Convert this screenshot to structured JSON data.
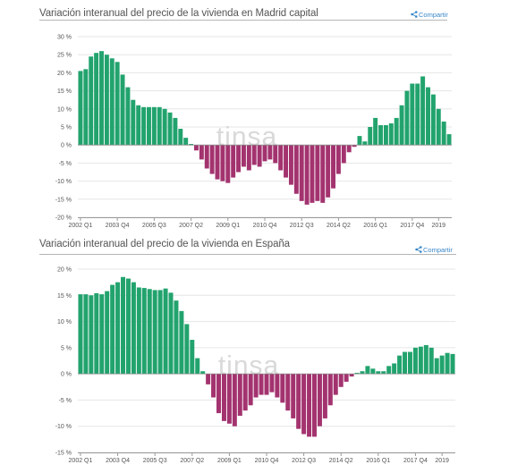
{
  "share_label": "Compartir",
  "watermark": "tinsa",
  "colors": {
    "positive": "#22a36e",
    "negative": "#a3336f",
    "grid": "#e6e6e6",
    "axis": "#9a9a9a"
  },
  "icons": {
    "share": "share-icon"
  },
  "chart_data": [
    {
      "type": "bar",
      "title": "Variación interanual del precio de la vivienda en Madrid capital",
      "xlabel": "",
      "ylabel": "",
      "ylim": [
        -20,
        30
      ],
      "y_ticks": [
        {
          "value": 30,
          "label": "30 %"
        },
        {
          "value": 25,
          "label": "25 %"
        },
        {
          "value": 20,
          "label": "20 %"
        },
        {
          "value": 15,
          "label": "15 %"
        },
        {
          "value": 10,
          "label": "10 %"
        },
        {
          "value": 5,
          "label": "5 %"
        },
        {
          "value": 0,
          "label": "0 %"
        },
        {
          "value": -5,
          "label": "-5 %"
        },
        {
          "value": -10,
          "label": "-10 %"
        },
        {
          "value": -15,
          "label": "-15 %"
        },
        {
          "value": -20,
          "label": "-20 %"
        }
      ],
      "x_ticks": [
        {
          "index": 0,
          "label": "2002 Q1"
        },
        {
          "index": 7,
          "label": "2003 Q4"
        },
        {
          "index": 14,
          "label": "2005 Q3"
        },
        {
          "index": 21,
          "label": "2007 Q2"
        },
        {
          "index": 28,
          "label": "2009 Q1"
        },
        {
          "index": 35,
          "label": "2010 Q4"
        },
        {
          "index": 42,
          "label": "2012 Q3"
        },
        {
          "index": 49,
          "label": "2014 Q2"
        },
        {
          "index": 56,
          "label": "2016 Q1"
        },
        {
          "index": 63,
          "label": "2017 Q4"
        },
        {
          "index": 68,
          "label": "2019"
        }
      ],
      "grid": true,
      "legend": "none",
      "values": [
        20.5,
        21,
        24.5,
        25.5,
        26,
        25,
        24,
        23,
        19.5,
        16,
        12.5,
        11,
        10.5,
        10.5,
        10.5,
        10.5,
        10,
        9,
        7.5,
        4.5,
        2,
        0.3,
        -1.5,
        -4,
        -6.5,
        -8,
        -9.5,
        -10,
        -10.5,
        -9,
        -7.5,
        -6,
        -7,
        -5.5,
        -6,
        -4.5,
        -4,
        -5,
        -7,
        -9,
        -11,
        -13.5,
        -15.5,
        -16.5,
        -16,
        -15.5,
        -16,
        -14.5,
        -12,
        -8,
        -5,
        -2,
        -0.5,
        2.5,
        1,
        5,
        7.5,
        5.5,
        5.5,
        6,
        7.5,
        11,
        15,
        17,
        17,
        19,
        16,
        14,
        10,
        6.5,
        3
      ]
    },
    {
      "type": "bar",
      "title": "Variación interanual del precio de la vivienda en España",
      "xlabel": "",
      "ylabel": "",
      "ylim": [
        -15,
        20
      ],
      "y_ticks": [
        {
          "value": 20,
          "label": "20 %"
        },
        {
          "value": 15,
          "label": "15 %"
        },
        {
          "value": 10,
          "label": "10 %"
        },
        {
          "value": 5,
          "label": "5 %"
        },
        {
          "value": 0,
          "label": "0 %"
        },
        {
          "value": -5,
          "label": "-5 %"
        },
        {
          "value": -10,
          "label": "-10 %"
        },
        {
          "value": -15,
          "label": "-15 %"
        }
      ],
      "x_ticks": [
        {
          "index": 0,
          "label": "2002 Q1"
        },
        {
          "index": 7,
          "label": "2003 Q4"
        },
        {
          "index": 14,
          "label": "2005 Q3"
        },
        {
          "index": 21,
          "label": "2007 Q2"
        },
        {
          "index": 28,
          "label": "2009 Q1"
        },
        {
          "index": 35,
          "label": "2010 Q4"
        },
        {
          "index": 42,
          "label": "2012 Q3"
        },
        {
          "index": 49,
          "label": "2014 Q2"
        },
        {
          "index": 56,
          "label": "2016 Q1"
        },
        {
          "index": 63,
          "label": "2017 Q4"
        },
        {
          "index": 68,
          "label": "2019"
        }
      ],
      "grid": true,
      "legend": "none",
      "values": [
        15.2,
        15.2,
        15,
        15.4,
        15.2,
        15.8,
        17,
        17.5,
        18.5,
        18.2,
        17.5,
        16.5,
        16.4,
        16.2,
        16,
        16,
        16.3,
        15.5,
        14,
        12,
        9.5,
        6.5,
        3,
        0.5,
        -2,
        -4.5,
        -7.5,
        -9,
        -9.5,
        -10,
        -8,
        -7,
        -6,
        -4.5,
        -4,
        -4,
        -3.5,
        -4.5,
        -5.5,
        -7,
        -8.5,
        -10.5,
        -11.5,
        -12,
        -12,
        -10,
        -8.5,
        -6,
        -4,
        -2.5,
        -1.5,
        -0.5,
        0.2,
        0.5,
        1.5,
        1,
        0.5,
        0.5,
        1.5,
        2,
        3.5,
        4.2,
        4.2,
        5,
        5.2,
        5.5,
        5,
        3,
        3.5,
        4,
        3.8
      ]
    }
  ]
}
